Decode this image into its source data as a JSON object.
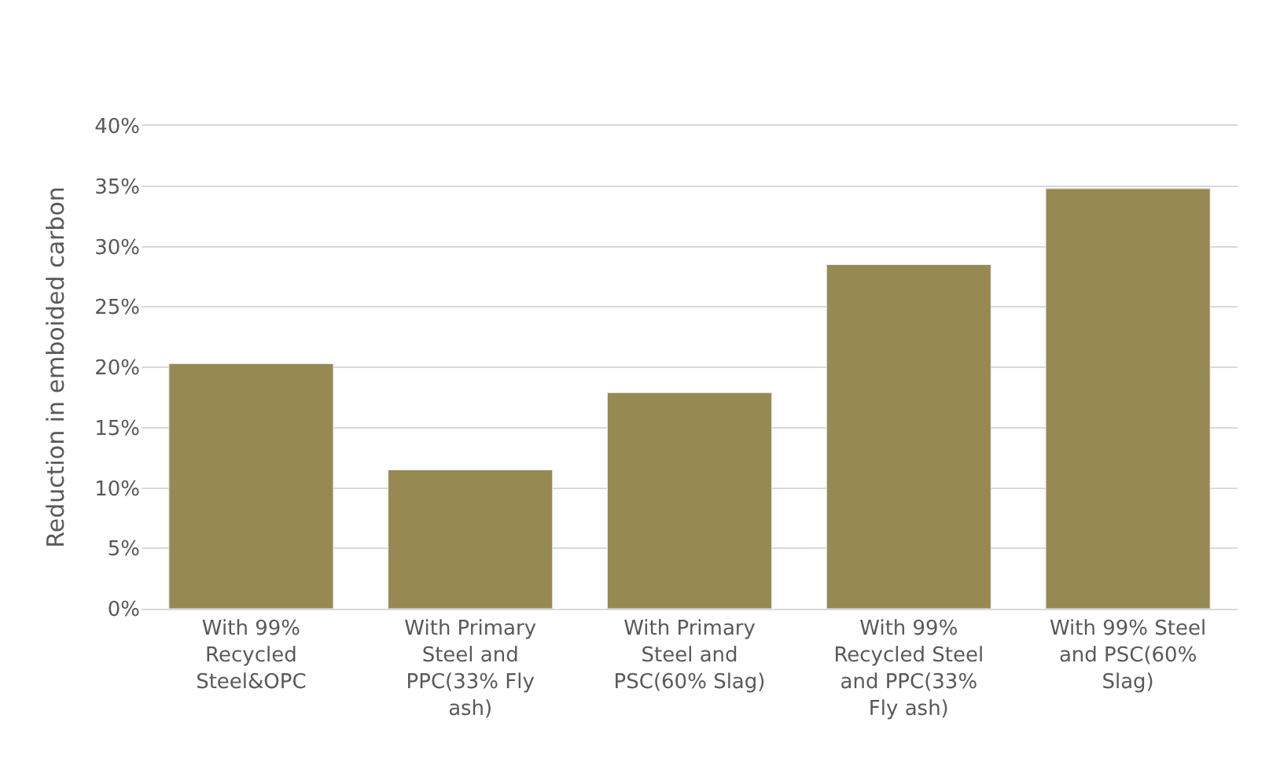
{
  "chart_data": {
    "type": "bar",
    "ylabel": "Reduction in emboided carbon",
    "categories": [
      "With 99% Recycled Steel&OPC",
      "With Primary Steel and PPC(33% Fly ash)",
      "With Primary Steel and PSC(60% Slag)",
      "With 99% Recycled Steel and PPC(33% Fly ash)",
      "With 99% Steel and PSC(60% Slag)"
    ],
    "values": [
      20.3,
      11.5,
      17.9,
      28.5,
      34.8
    ],
    "color": "#968a52",
    "ylim": [
      0,
      40
    ],
    "yticks": [
      {
        "value": 0,
        "label": "0%"
      },
      {
        "value": 5,
        "label": "5%"
      },
      {
        "value": 10,
        "label": "10%"
      },
      {
        "value": 15,
        "label": "15%"
      },
      {
        "value": 20,
        "label": "20%"
      },
      {
        "value": 25,
        "label": "25%"
      },
      {
        "value": 30,
        "label": "30%"
      },
      {
        "value": 35,
        "label": "35%"
      },
      {
        "value": 40,
        "label": "40%"
      }
    ],
    "grid": "y"
  }
}
